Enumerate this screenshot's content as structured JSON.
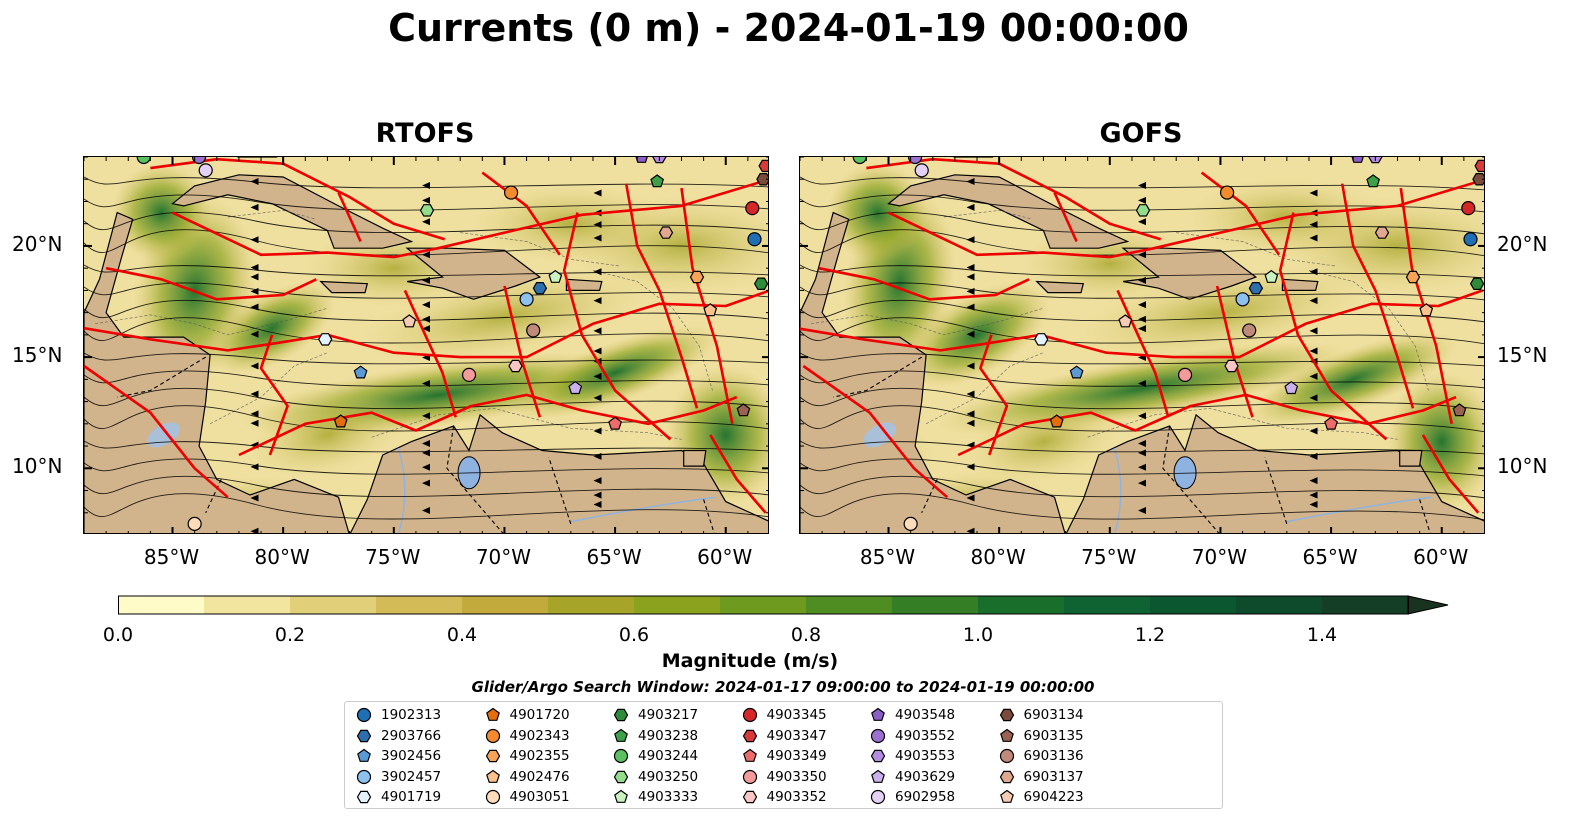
{
  "title": "Currents (0 m) - 2024-01-19 00:00:00",
  "panels": [
    {
      "name": "RTOFS"
    },
    {
      "name": "GOFS"
    }
  ],
  "axes": {
    "x_ticks": [
      "85°W",
      "80°W",
      "75°W",
      "70°W",
      "65°W",
      "60°W"
    ],
    "y_ticks": [
      "20°N",
      "15°N",
      "10°N"
    ],
    "lon_range": [
      -89.0,
      -58.0
    ],
    "lat_range": [
      7.0,
      24.0
    ]
  },
  "colorbar": {
    "label": "Magnitude (m/s)",
    "ticks": [
      "0.0",
      "0.2",
      "0.4",
      "0.6",
      "0.8",
      "1.0",
      "1.2",
      "1.4"
    ],
    "range": [
      0.0,
      1.5
    ],
    "extend": "max",
    "colors": [
      "#fffbc9",
      "#f2e5a0",
      "#e2cf7a",
      "#d3bb57",
      "#c2aa3c",
      "#a6a52a",
      "#8aa21e",
      "#6d9a1f",
      "#4f8d23",
      "#347f25",
      "#1a6e2b",
      "#0f6231",
      "#0b5730",
      "#0e4b2c",
      "#143f26",
      "#1a3220"
    ]
  },
  "search_window": "Glider/Argo Search Window: 2024-01-17 09:00:00 to 2024-01-19 00:00:00",
  "legend": [
    {
      "id": "1902313",
      "color": "#1f6fb5",
      "marker": "circle"
    },
    {
      "id": "2903766",
      "color": "#2d6fae",
      "marker": "hexagon"
    },
    {
      "id": "3902456",
      "color": "#5b9bd5",
      "marker": "pentagon"
    },
    {
      "id": "3902457",
      "color": "#8ec2ee",
      "marker": "circle"
    },
    {
      "id": "4901719",
      "color": "#e4f2fd",
      "marker": "hexagon"
    },
    {
      "id": "4901720",
      "color": "#e46d0c",
      "marker": "pentagon"
    },
    {
      "id": "4902343",
      "color": "#f28a2e",
      "marker": "circle"
    },
    {
      "id": "4902355",
      "color": "#f7a459",
      "marker": "hexagon"
    },
    {
      "id": "4902476",
      "color": "#fbc28e",
      "marker": "pentagon"
    },
    {
      "id": "4903051",
      "color": "#fddcbc",
      "marker": "circle"
    },
    {
      "id": "4903217",
      "color": "#2e8b3a",
      "marker": "hexagon"
    },
    {
      "id": "4903238",
      "color": "#3fa04a",
      "marker": "pentagon"
    },
    {
      "id": "4903244",
      "color": "#5ac060",
      "marker": "circle"
    },
    {
      "id": "4903250",
      "color": "#92dc8c",
      "marker": "hexagon"
    },
    {
      "id": "4903333",
      "color": "#c9f2c0",
      "marker": "pentagon"
    },
    {
      "id": "4903345",
      "color": "#d62728",
      "marker": "circle"
    },
    {
      "id": "4903347",
      "color": "#d83a3a",
      "marker": "hexagon"
    },
    {
      "id": "4903349",
      "color": "#ee6b6b",
      "marker": "pentagon"
    },
    {
      "id": "4903350",
      "color": "#f39a9a",
      "marker": "circle"
    },
    {
      "id": "4903352",
      "color": "#f9c6c6",
      "marker": "hexagon"
    },
    {
      "id": "4903548",
      "color": "#8b5fc6",
      "marker": "pentagon"
    },
    {
      "id": "4903552",
      "color": "#9c6fd0",
      "marker": "circle"
    },
    {
      "id": "4903553",
      "color": "#b48ce0",
      "marker": "hexagon"
    },
    {
      "id": "4903629",
      "color": "#cbb0ec",
      "marker": "pentagon"
    },
    {
      "id": "6902958",
      "color": "#e3d2f6",
      "marker": "circle"
    },
    {
      "id": "6903134",
      "color": "#7a4a3a",
      "marker": "hexagon"
    },
    {
      "id": "6903135",
      "color": "#9a6252",
      "marker": "pentagon"
    },
    {
      "id": "6903136",
      "color": "#c08a7a",
      "marker": "circle"
    },
    {
      "id": "6903137",
      "color": "#e0a890",
      "marker": "hexagon"
    },
    {
      "id": "6904223",
      "color": "#f6cbb5",
      "marker": "pentagon"
    }
  ],
  "floats": [
    {
      "id": "1902313",
      "lon": -58.7,
      "lat": 20.3
    },
    {
      "id": "2903766",
      "lon": -68.4,
      "lat": 18.1
    },
    {
      "id": "3902456",
      "lon": -76.5,
      "lat": 14.3
    },
    {
      "id": "3902457",
      "lon": -69.0,
      "lat": 17.6
    },
    {
      "id": "4901719",
      "lon": -78.1,
      "lat": 15.8
    },
    {
      "id": "4901720",
      "lon": -77.4,
      "lat": 12.1
    },
    {
      "id": "4902343",
      "lon": -69.7,
      "lat": 22.4
    },
    {
      "id": "4902355",
      "lon": -61.3,
      "lat": 18.6
    },
    {
      "id": "4902476",
      "lon": -60.7,
      "lat": 17.1
    },
    {
      "id": "4903051",
      "lon": -84.0,
      "lat": 7.5
    },
    {
      "id": "4903217",
      "lon": -58.4,
      "lat": 18.3
    },
    {
      "id": "4903238",
      "lon": -63.1,
      "lat": 22.9
    },
    {
      "id": "4903244",
      "lon": -86.3,
      "lat": 24.0
    },
    {
      "id": "4903250",
      "lon": -73.5,
      "lat": 21.6
    },
    {
      "id": "4903333",
      "lon": -67.7,
      "lat": 18.6
    },
    {
      "id": "4903345",
      "lon": -58.8,
      "lat": 21.7
    },
    {
      "id": "4903347",
      "lon": -58.2,
      "lat": 23.6
    },
    {
      "id": "4903349",
      "lon": -65.0,
      "lat": 12.0
    },
    {
      "id": "4903350",
      "lon": -71.6,
      "lat": 14.2
    },
    {
      "id": "4903352",
      "lon": -69.5,
      "lat": 14.6
    },
    {
      "id": "4903548",
      "lon": -63.8,
      "lat": 24.0
    },
    {
      "id": "4903552",
      "lon": -83.8,
      "lat": 24.0
    },
    {
      "id": "4903553",
      "lon": -63.0,
      "lat": 24.0
    },
    {
      "id": "4903629",
      "lon": -66.8,
      "lat": 13.6
    },
    {
      "id": "6902958",
      "lon": -83.5,
      "lat": 23.4
    },
    {
      "id": "6903134",
      "lon": -58.3,
      "lat": 23.0
    },
    {
      "id": "6903135",
      "lon": -59.2,
      "lat": 12.6
    },
    {
      "id": "6903136",
      "lon": -68.7,
      "lat": 16.2
    },
    {
      "id": "6903137",
      "lon": -62.7,
      "lat": 20.6
    },
    {
      "id": "6904223",
      "lon": -74.3,
      "lat": 16.6
    }
  ]
}
